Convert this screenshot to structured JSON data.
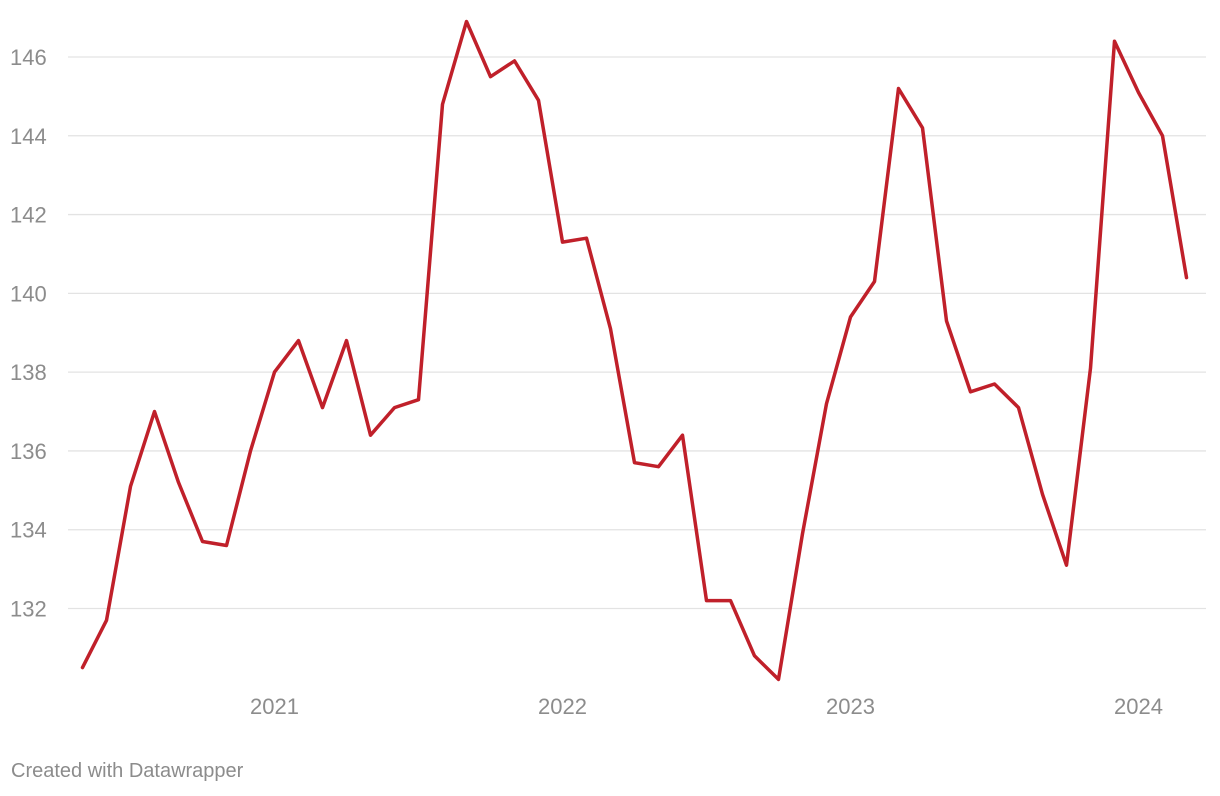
{
  "chart_data": {
    "type": "line",
    "title": "",
    "xlabel": "",
    "ylabel": "",
    "x_start": "2020-05",
    "x": [
      "2020-05",
      "2020-06",
      "2020-07",
      "2020-08",
      "2020-09",
      "2020-10",
      "2020-11",
      "2020-12",
      "2021-01",
      "2021-02",
      "2021-03",
      "2021-04",
      "2021-05",
      "2021-06",
      "2021-07",
      "2021-08",
      "2021-09",
      "2021-10",
      "2021-11",
      "2021-12",
      "2022-01",
      "2022-02",
      "2022-03",
      "2022-04",
      "2022-05",
      "2022-06",
      "2022-07",
      "2022-08",
      "2022-09",
      "2022-10",
      "2022-11",
      "2022-12",
      "2023-01",
      "2023-02",
      "2023-03",
      "2023-04",
      "2023-05",
      "2023-06",
      "2023-07",
      "2023-08",
      "2023-09",
      "2023-10",
      "2023-11",
      "2023-12",
      "2024-01",
      "2024-02",
      "2024-03"
    ],
    "series": [
      {
        "name": "",
        "color": "#c0202a",
        "values": [
          130.5,
          131.7,
          135.1,
          137.0,
          135.2,
          133.7,
          133.6,
          136.0,
          138.0,
          138.8,
          137.1,
          138.8,
          136.4,
          137.1,
          137.3,
          144.8,
          146.9,
          145.5,
          145.9,
          144.9,
          141.3,
          141.4,
          139.1,
          135.7,
          135.6,
          136.4,
          132.2,
          132.2,
          130.8,
          130.2,
          133.9,
          137.2,
          139.4,
          140.3,
          145.2,
          144.2,
          139.3,
          137.5,
          137.7,
          137.1,
          134.9,
          133.1,
          138.1,
          146.4,
          145.1,
          144.0,
          140.4
        ]
      }
    ],
    "x_ticks": [
      {
        "date": "2021-01",
        "label": "2021"
      },
      {
        "date": "2022-01",
        "label": "2022"
      },
      {
        "date": "2023-01",
        "label": "2023"
      },
      {
        "date": "2024-01",
        "label": "2024"
      }
    ],
    "y_ticks": [
      132,
      134,
      136,
      138,
      140,
      142,
      144,
      146
    ],
    "ylim": [
      130.0,
      147.2
    ],
    "grid": true,
    "legend": "none"
  },
  "footer": {
    "credit": "Created with Datawrapper"
  }
}
